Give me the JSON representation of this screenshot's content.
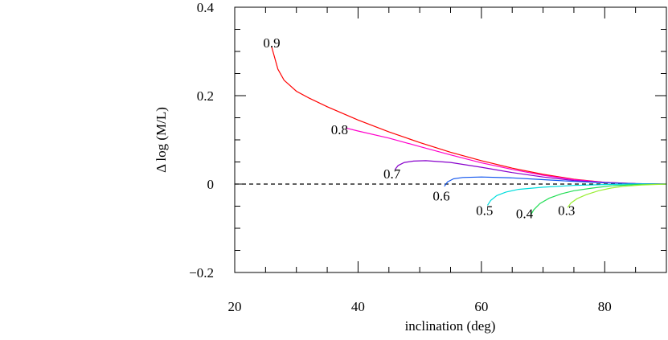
{
  "chart_data": {
    "type": "line",
    "title": "",
    "xlabel": "inclination (deg)",
    "ylabel": "Δ log (M/L)",
    "xlim": [
      20,
      90
    ],
    "ylim": [
      -0.2,
      0.4
    ],
    "xticks": [
      20,
      40,
      60,
      80
    ],
    "xtick_labels": [
      "20",
      "40",
      "60",
      "80"
    ],
    "yticks": [
      -0.2,
      0,
      0.2,
      0.4
    ],
    "ytick_labels": [
      "−0.2",
      "0",
      "0.2",
      "0.4"
    ],
    "grid": false,
    "legend": "none",
    "reference_line": {
      "y": 0,
      "style": "dashed",
      "color": "#000000"
    },
    "series": [
      {
        "name": "0.9",
        "color": "#ff0000",
        "label_at": [
          26,
          0.32
        ],
        "points": [
          [
            26,
            0.31
          ],
          [
            27,
            0.26
          ],
          [
            28,
            0.235
          ],
          [
            30,
            0.21
          ],
          [
            32,
            0.195
          ],
          [
            35,
            0.175
          ],
          [
            40,
            0.145
          ],
          [
            45,
            0.118
          ],
          [
            50,
            0.094
          ],
          [
            55,
            0.072
          ],
          [
            60,
            0.053
          ],
          [
            65,
            0.036
          ],
          [
            70,
            0.022
          ],
          [
            75,
            0.011
          ],
          [
            80,
            0.004
          ],
          [
            85,
            0.001
          ],
          [
            90,
            0.0
          ]
        ]
      },
      {
        "name": "0.8",
        "color": "#ff00cc",
        "label_at": [
          37,
          0.124
        ],
        "points": [
          [
            38,
            0.127
          ],
          [
            40,
            0.12
          ],
          [
            45,
            0.104
          ],
          [
            50,
            0.085
          ],
          [
            55,
            0.066
          ],
          [
            60,
            0.048
          ],
          [
            65,
            0.033
          ],
          [
            70,
            0.02
          ],
          [
            75,
            0.01
          ],
          [
            80,
            0.004
          ],
          [
            85,
            0.001
          ],
          [
            90,
            0.0
          ]
        ]
      },
      {
        "name": "0.7",
        "color": "#8800cc",
        "label_at": [
          45.5,
          0.024
        ],
        "points": [
          [
            46,
            0.033
          ],
          [
            46.5,
            0.042
          ],
          [
            47.5,
            0.049
          ],
          [
            49,
            0.052
          ],
          [
            51,
            0.053
          ],
          [
            55,
            0.049
          ],
          [
            60,
            0.038
          ],
          [
            65,
            0.026
          ],
          [
            70,
            0.016
          ],
          [
            75,
            0.008
          ],
          [
            80,
            0.003
          ],
          [
            85,
            0.001
          ],
          [
            90,
            0.0
          ]
        ]
      },
      {
        "name": "0.6",
        "color": "#1155ee",
        "label_at": [
          53.5,
          -0.026
        ],
        "points": [
          [
            54,
            -0.005
          ],
          [
            54.5,
            0.005
          ],
          [
            55.5,
            0.012
          ],
          [
            57,
            0.015
          ],
          [
            60,
            0.016
          ],
          [
            65,
            0.014
          ],
          [
            70,
            0.01
          ],
          [
            75,
            0.006
          ],
          [
            80,
            0.003
          ],
          [
            85,
            0.001
          ],
          [
            90,
            0.0
          ]
        ]
      },
      {
        "name": "0.5",
        "color": "#00dddd",
        "label_at": [
          60.5,
          -0.059
        ],
        "points": [
          [
            61,
            -0.048
          ],
          [
            61.5,
            -0.037
          ],
          [
            62.5,
            -0.026
          ],
          [
            64,
            -0.018
          ],
          [
            66,
            -0.012
          ],
          [
            70,
            -0.007
          ],
          [
            75,
            -0.003
          ],
          [
            80,
            -0.001
          ],
          [
            85,
            0.0
          ],
          [
            90,
            0.0
          ]
        ]
      },
      {
        "name": "0.4",
        "color": "#22dd55",
        "label_at": [
          67,
          -0.066
        ],
        "points": [
          [
            68,
            -0.07
          ],
          [
            68.5,
            -0.058
          ],
          [
            69.5,
            -0.044
          ],
          [
            71,
            -0.032
          ],
          [
            73,
            -0.022
          ],
          [
            75,
            -0.015
          ],
          [
            78,
            -0.009
          ],
          [
            81,
            -0.004
          ],
          [
            85,
            -0.001
          ],
          [
            90,
            0.0
          ]
        ]
      },
      {
        "name": "0.3",
        "color": "#99ee33",
        "label_at": [
          73.8,
          -0.059
        ],
        "points": [
          [
            74,
            -0.053
          ],
          [
            74.5,
            -0.043
          ],
          [
            75.5,
            -0.033
          ],
          [
            77,
            -0.024
          ],
          [
            79,
            -0.015
          ],
          [
            81,
            -0.009
          ],
          [
            83,
            -0.005
          ],
          [
            86,
            -0.002
          ],
          [
            90,
            0.0
          ]
        ]
      }
    ]
  }
}
